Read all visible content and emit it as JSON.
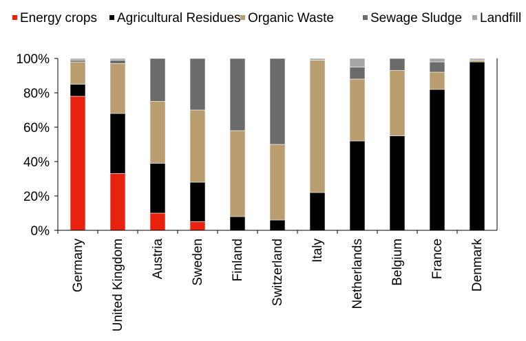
{
  "chart_data": {
    "type": "bar",
    "stacked": true,
    "categories": [
      "Germany",
      "United Kingdom",
      "Austria",
      "Sweden",
      "Finland",
      "Switzerland",
      "Italy",
      "Netherlands",
      "Belgium",
      "France",
      "Denmark"
    ],
    "series": [
      {
        "name": "Energy crops",
        "color": "#e8220f",
        "values": [
          78,
          33,
          10,
          5,
          0,
          0,
          0,
          0,
          0,
          0,
          0
        ]
      },
      {
        "name": "Agricultural Residues",
        "color": "#000000",
        "values": [
          7,
          35,
          29,
          23,
          8,
          6,
          22,
          52,
          55,
          82,
          98
        ]
      },
      {
        "name": "Organic Waste",
        "color": "#b99d6e",
        "values": [
          13,
          29,
          36,
          42,
          50,
          44,
          77,
          36,
          38,
          10,
          1
        ]
      },
      {
        "name": "Sewage Sludge",
        "color": "#6b6b6b",
        "values": [
          1,
          2,
          25,
          30,
          42,
          50,
          0,
          7,
          7,
          6,
          0
        ]
      },
      {
        "name": "Landfill",
        "color": "#a6a6a6",
        "values": [
          1,
          1,
          0,
          0,
          0,
          0,
          1,
          5,
          0,
          2,
          1
        ]
      }
    ],
    "y_ticks": [
      "0%",
      "20%",
      "40%",
      "60%",
      "80%",
      "100%"
    ],
    "ylim": [
      0,
      100
    ],
    "legend_position": "top",
    "grid": false
  }
}
